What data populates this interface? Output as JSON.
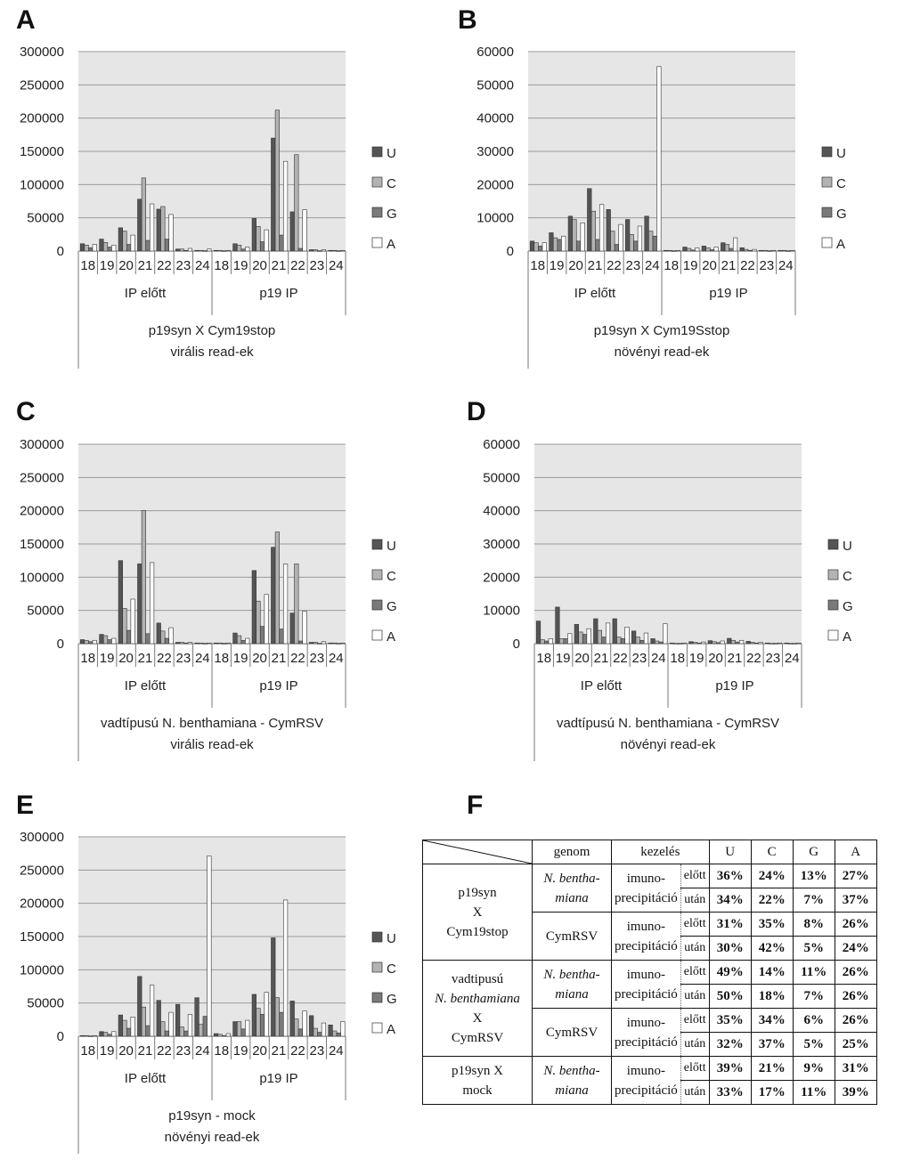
{
  "colors": {
    "U": "#555555",
    "C": "#b3b3b3",
    "G": "#7a7a7a",
    "A": "#ffffff",
    "plot_bg": "#e6e6e6"
  },
  "legend": [
    "U",
    "C",
    "G",
    "A"
  ],
  "sizes": [
    "18",
    "19",
    "20",
    "21",
    "22",
    "23",
    "24"
  ],
  "groups": [
    "IP előtt",
    "p19 IP"
  ],
  "chart_data": [
    {
      "panel": "A",
      "type": "bar",
      "ylim": [
        0,
        300000
      ],
      "yticks": [
        "0",
        "50000",
        "100000",
        "150000",
        "200000",
        "250000",
        "300000"
      ],
      "caption": [
        "p19syn X Cym19stop",
        "virális read-ek"
      ],
      "series": [
        {
          "name": "U",
          "values": [
            11000,
            18000,
            35000,
            78000,
            63000,
            3000,
            1000,
            1000,
            11000,
            49000,
            170000,
            59000,
            2000,
            1000
          ]
        },
        {
          "name": "C",
          "values": [
            9000,
            13000,
            30000,
            110000,
            67000,
            3000,
            1000,
            1000,
            9000,
            37000,
            212000,
            145000,
            2000,
            1000
          ]
        },
        {
          "name": "G",
          "values": [
            5000,
            6000,
            10000,
            16000,
            18000,
            1000,
            500,
            500,
            3000,
            14000,
            24000,
            4000,
            500,
            500
          ]
        },
        {
          "name": "A",
          "values": [
            10000,
            9000,
            24000,
            71000,
            55000,
            4000,
            3000,
            1000,
            6000,
            32000,
            135000,
            62000,
            2000,
            1000
          ]
        }
      ]
    },
    {
      "panel": "B",
      "type": "bar",
      "ylim": [
        0,
        60000
      ],
      "yticks": [
        "0",
        "10000",
        "20000",
        "30000",
        "40000",
        "50000",
        "60000"
      ],
      "caption": [
        "p19syn X Cym19Sstop",
        "növényi read-ek"
      ],
      "series": [
        {
          "name": "U",
          "values": [
            3000,
            5500,
            10500,
            18800,
            12500,
            9500,
            10500,
            200,
            1200,
            1500,
            2500,
            1000,
            200,
            200
          ]
        },
        {
          "name": "C",
          "values": [
            2500,
            4000,
            9500,
            12000,
            6000,
            5000,
            6000,
            200,
            800,
            1000,
            2000,
            500,
            200,
            200
          ]
        },
        {
          "name": "G",
          "values": [
            1500,
            3500,
            3000,
            3500,
            2000,
            3000,
            4500,
            100,
            300,
            400,
            800,
            200,
            100,
            100
          ]
        },
        {
          "name": "A",
          "values": [
            2500,
            4500,
            8500,
            14000,
            8000,
            7500,
            55500,
            200,
            900,
            1200,
            4000,
            500,
            200,
            200
          ]
        }
      ]
    },
    {
      "panel": "C",
      "type": "bar",
      "ylim": [
        0,
        300000
      ],
      "yticks": [
        "0",
        "50000",
        "100000",
        "150000",
        "200000",
        "250000",
        "300000"
      ],
      "caption": [
        "vadtípusú N. benthamiana - CymRSV",
        "virális read-ek"
      ],
      "series": [
        {
          "name": "U",
          "values": [
            6000,
            14000,
            125000,
            120000,
            31000,
            2000,
            1000,
            1000,
            16000,
            110000,
            145000,
            46000,
            2000,
            1000
          ]
        },
        {
          "name": "C",
          "values": [
            5000,
            12000,
            53000,
            200000,
            19000,
            2000,
            1000,
            1000,
            12000,
            64000,
            168000,
            120000,
            2000,
            1000
          ]
        },
        {
          "name": "G",
          "values": [
            3000,
            6000,
            20000,
            15000,
            8000,
            1000,
            500,
            500,
            5000,
            26000,
            22000,
            4000,
            500,
            500
          ]
        },
        {
          "name": "A",
          "values": [
            5000,
            8000,
            67000,
            122000,
            24000,
            2000,
            1000,
            1000,
            8000,
            74000,
            120000,
            49000,
            3000,
            1000
          ]
        }
      ]
    },
    {
      "panel": "D",
      "type": "bar",
      "ylim": [
        0,
        60000
      ],
      "yticks": [
        "0",
        "10000",
        "20000",
        "30000",
        "40000",
        "50000",
        "60000"
      ],
      "caption": [
        "vadtípusú N. benthamiana - CymRSV",
        "növényi read-ek"
      ],
      "series": [
        {
          "name": "U",
          "values": [
            6800,
            11000,
            5800,
            7500,
            7500,
            3800,
            1500,
            200,
            600,
            900,
            1600,
            700,
            200,
            200
          ]
        },
        {
          "name": "C",
          "values": [
            1200,
            1500,
            3500,
            4000,
            2000,
            2000,
            800,
            100,
            400,
            600,
            1000,
            400,
            100,
            100
          ]
        },
        {
          "name": "G",
          "values": [
            800,
            1500,
            2800,
            2000,
            1500,
            1000,
            500,
            100,
            200,
            300,
            500,
            200,
            100,
            100
          ]
        },
        {
          "name": "A",
          "values": [
            1500,
            3000,
            4500,
            6200,
            5000,
            3200,
            6000,
            200,
            500,
            800,
            1000,
            400,
            200,
            200
          ]
        }
      ]
    },
    {
      "panel": "E",
      "type": "bar",
      "ylim": [
        0,
        300000
      ],
      "yticks": [
        "0",
        "50000",
        "100000",
        "150000",
        "200000",
        "250000",
        "300000"
      ],
      "caption": [
        "p19syn - mock",
        "növényi read-ek"
      ],
      "series": [
        {
          "name": "U",
          "values": [
            1000,
            7000,
            32000,
            90000,
            54000,
            48000,
            58000,
            4000,
            22000,
            63000,
            148000,
            53000,
            31000,
            17000
          ]
        },
        {
          "name": "C",
          "values": [
            1000,
            6000,
            24000,
            44000,
            22000,
            14000,
            18000,
            3000,
            22000,
            42000,
            58000,
            26000,
            12000,
            8000
          ]
        },
        {
          "name": "G",
          "values": [
            500,
            3000,
            12000,
            16000,
            8000,
            8000,
            30000,
            1000,
            11000,
            33000,
            36000,
            11000,
            6000,
            5000
          ]
        },
        {
          "name": "A",
          "values": [
            1000,
            7000,
            29000,
            77000,
            36000,
            33000,
            271000,
            4000,
            24000,
            66000,
            205000,
            38000,
            20000,
            22000
          ]
        }
      ]
    }
  ],
  "table_f": {
    "letter": "F",
    "headers": [
      "genom",
      "kezelés",
      "U",
      "C",
      "G",
      "A"
    ],
    "treatment_lines": [
      "imuno-",
      "precipitáció"
    ],
    "groups": [
      {
        "sample": [
          "p19syn",
          "X",
          "Cym19stop"
        ],
        "genomes": [
          {
            "genome": [
              "N. bentha-",
              "miana"
            ],
            "italic": true,
            "rows": [
              {
                "sub": "előtt",
                "vals": [
                  "36%",
                  "24%",
                  "13%",
                  "27%"
                ]
              },
              {
                "sub": "után",
                "vals": [
                  "34%",
                  "22%",
                  "7%",
                  "37%"
                ]
              }
            ]
          },
          {
            "genome": [
              "CymRSV"
            ],
            "italic": false,
            "rows": [
              {
                "sub": "előtt",
                "vals": [
                  "31%",
                  "35%",
                  "8%",
                  "26%"
                ]
              },
              {
                "sub": "után",
                "vals": [
                  "30%",
                  "42%",
                  "5%",
                  "24%"
                ]
              }
            ]
          }
        ]
      },
      {
        "sample": [
          "vadtipusú",
          "N. benthamiana",
          "X",
          "CymRSV"
        ],
        "genomes": [
          {
            "genome": [
              "N. bentha-",
              "miana"
            ],
            "italic": true,
            "rows": [
              {
                "sub": "előtt",
                "vals": [
                  "49%",
                  "14%",
                  "11%",
                  "26%"
                ]
              },
              {
                "sub": "után",
                "vals": [
                  "50%",
                  "18%",
                  "7%",
                  "26%"
                ]
              }
            ]
          },
          {
            "genome": [
              "CymRSV"
            ],
            "italic": false,
            "rows": [
              {
                "sub": "előtt",
                "vals": [
                  "35%",
                  "34%",
                  "6%",
                  "26%"
                ]
              },
              {
                "sub": "után",
                "vals": [
                  "32%",
                  "37%",
                  "5%",
                  "25%"
                ]
              }
            ]
          }
        ]
      },
      {
        "sample": [
          "p19syn X",
          "mock"
        ],
        "genomes": [
          {
            "genome": [
              "N. bentha-",
              "miana"
            ],
            "italic": true,
            "rows": [
              {
                "sub": "előtt",
                "vals": [
                  "39%",
                  "21%",
                  "9%",
                  "31%"
                ]
              },
              {
                "sub": "után",
                "vals": [
                  "33%",
                  "17%",
                  "11%",
                  "39%"
                ]
              }
            ]
          }
        ]
      }
    ]
  }
}
